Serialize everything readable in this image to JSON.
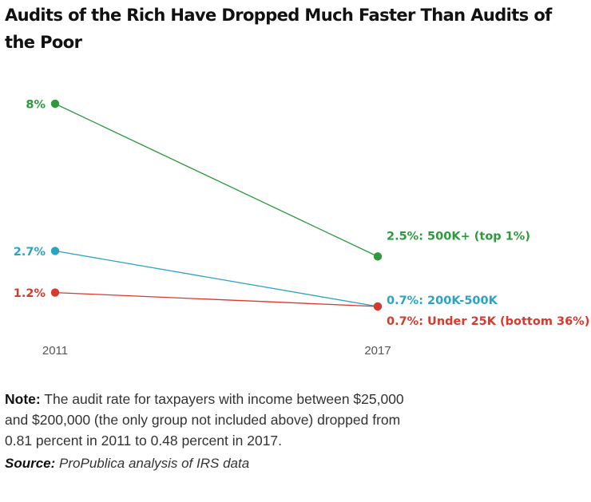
{
  "title": "Audits of the Rich Have Dropped Much Faster Than Audits of the Poor",
  "note": {
    "label": "Note:",
    "text": "The audit rate for taxpayers with income between $25,000 and $200,000 (the only group not included above) dropped from 0.81 percent in 2011 to 0.48 percent in 2017."
  },
  "source": {
    "label": "Source:",
    "text": "ProPublica analysis of IRS data"
  },
  "chart_data": {
    "type": "line",
    "x": [
      "2011",
      "2017"
    ],
    "xlabel": "",
    "ylabel": "",
    "grid": false,
    "series": [
      {
        "name": "500K+ (top 1%)",
        "values": [
          8,
          2.5
        ],
        "start_label": "8%",
        "end_label": "2.5%: 500K+ (top 1%)",
        "color": "#2e9a3d"
      },
      {
        "name": "200K-500K",
        "values": [
          2.7,
          0.7
        ],
        "start_label": "2.7%",
        "end_label": "0.7%: 200K-500K",
        "color": "#2ba3c2"
      },
      {
        "name": "Under 25K (bottom 36%)",
        "values": [
          1.2,
          0.7
        ],
        "start_label": "1.2%",
        "end_label": "0.7%: Under 25K (bottom 36%)",
        "color": "#d63a2f"
      }
    ]
  }
}
